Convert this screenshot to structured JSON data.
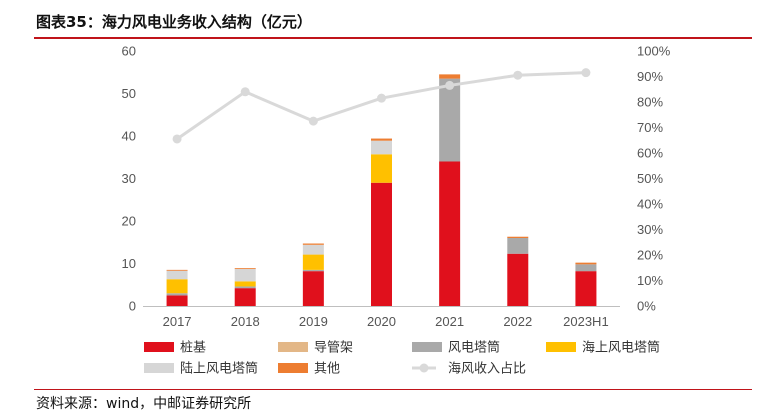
{
  "figure": {
    "title": "图表35：海力风电业务收入结构（亿元）",
    "source": "资料来源：wind，中邮证券研究所"
  },
  "colors": {
    "accent_rule": "#c0141a",
    "pile_foundation": "#e0101c",
    "guide_frame": "#e3b787",
    "wind_tower": "#a9a9a9",
    "offshore_tower": "#ffc000",
    "onshore_tower": "#d6d6d6",
    "other": "#ed7d31",
    "offshore_share_line": "#d9d9d9"
  },
  "chart_data": {
    "type": "bar",
    "stacked": true,
    "title": "图表35：海力风电业务收入结构（亿元）",
    "categories": [
      "2017",
      "2018",
      "2019",
      "2020",
      "2021",
      "2022",
      "2023H1"
    ],
    "y_left": {
      "range": [
        0,
        60
      ],
      "ticks": [
        "0",
        "10",
        "20",
        "30",
        "40",
        "50",
        "60"
      ]
    },
    "y_right": {
      "range": [
        0,
        100
      ],
      "ticks": [
        "0%",
        "10%",
        "20%",
        "30%",
        "40%",
        "50%",
        "60%",
        "70%",
        "80%",
        "90%",
        "100%"
      ]
    },
    "gridlines": false,
    "legend_position": "bottom",
    "series": [
      {
        "name": "桩基",
        "color_key": "pile_foundation",
        "axis": "left",
        "values": [
          2.5,
          4.2,
          8.2,
          29.0,
          34.0,
          12.3,
          8.2
        ]
      },
      {
        "name": "导管架",
        "color_key": "guide_frame",
        "axis": "left",
        "values": [
          0.0,
          0.0,
          0.0,
          0.0,
          0.0,
          0.0,
          0.0
        ]
      },
      {
        "name": "风电塔筒",
        "color_key": "wind_tower",
        "axis": "left",
        "values": [
          0.5,
          0.4,
          0.3,
          0.0,
          19.5,
          3.7,
          1.6
        ]
      },
      {
        "name": "海上风电塔筒",
        "color_key": "offshore_tower",
        "axis": "left",
        "values": [
          3.3,
          1.2,
          3.6,
          6.7,
          0.0,
          0.0,
          0.0
        ]
      },
      {
        "name": "陆上风电塔筒",
        "color_key": "onshore_tower",
        "axis": "left",
        "values": [
          2.0,
          2.9,
          2.3,
          3.2,
          0.0,
          0.0,
          0.0
        ]
      },
      {
        "name": "其他",
        "color_key": "other",
        "axis": "left",
        "values": [
          0.2,
          0.2,
          0.3,
          0.5,
          1.0,
          0.3,
          0.4
        ]
      },
      {
        "name": "海风收入占比",
        "color_key": "offshore_share_line",
        "axis": "right",
        "kind": "line",
        "values": [
          65.5,
          84.0,
          72.5,
          81.5,
          86.5,
          90.5,
          91.5
        ]
      }
    ]
  }
}
